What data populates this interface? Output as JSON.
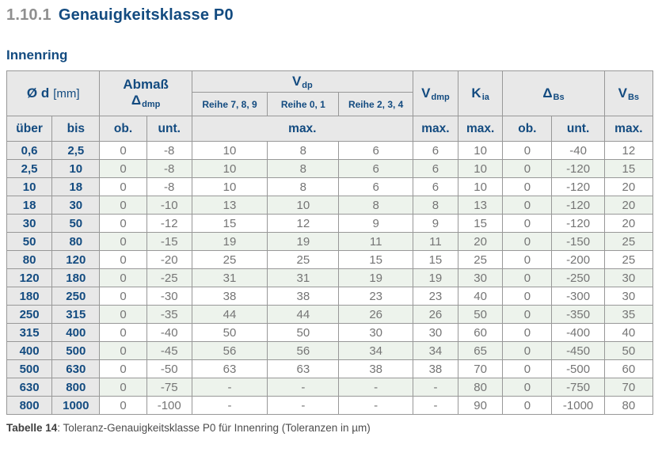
{
  "page": {
    "section_number": "1.10.1",
    "section_title": "Genauigkeitsklasse P0",
    "subtitle": "Innenring"
  },
  "table": {
    "header": {
      "diameter": {
        "main": "Ø d",
        "unit": "[mm]"
      },
      "abmass": {
        "line1": "Abmaß",
        "symbol": "Δ",
        "sub": "dmp"
      },
      "vdp": {
        "main": "V",
        "sub": "dp"
      },
      "reihe_columns": [
        "Reihe 7, 8, 9",
        "Reihe 0, 1",
        "Reihe 2, 3, 4"
      ],
      "vdmp": {
        "main": "V",
        "sub": "dmp"
      },
      "kia": {
        "main": "K",
        "sub": "ia"
      },
      "delta_bs": {
        "main": "Δ",
        "sub": "Bs"
      },
      "vbs": {
        "main": "V",
        "sub": "Bs"
      },
      "sub_row": {
        "ueber": "über",
        "bis": "bis",
        "ob1": "ob.",
        "unt1": "unt.",
        "max_vdp": "max.",
        "max_vdmp": "max.",
        "max_kia": "max.",
        "ob2": "ob.",
        "unt2": "unt.",
        "max_vbs": "max."
      }
    },
    "rows": [
      [
        "0,6",
        "2,5",
        "0",
        "-8",
        "10",
        "8",
        "6",
        "6",
        "10",
        "0",
        "-40",
        "12"
      ],
      [
        "2,5",
        "10",
        "0",
        "-8",
        "10",
        "8",
        "6",
        "6",
        "10",
        "0",
        "-120",
        "15"
      ],
      [
        "10",
        "18",
        "0",
        "-8",
        "10",
        "8",
        "6",
        "6",
        "10",
        "0",
        "-120",
        "20"
      ],
      [
        "18",
        "30",
        "0",
        "-10",
        "13",
        "10",
        "8",
        "8",
        "13",
        "0",
        "-120",
        "20"
      ],
      [
        "30",
        "50",
        "0",
        "-12",
        "15",
        "12",
        "9",
        "9",
        "15",
        "0",
        "-120",
        "20"
      ],
      [
        "50",
        "80",
        "0",
        "-15",
        "19",
        "19",
        "11",
        "11",
        "20",
        "0",
        "-150",
        "25"
      ],
      [
        "80",
        "120",
        "0",
        "-20",
        "25",
        "25",
        "15",
        "15",
        "25",
        "0",
        "-200",
        "25"
      ],
      [
        "120",
        "180",
        "0",
        "-25",
        "31",
        "31",
        "19",
        "19",
        "30",
        "0",
        "-250",
        "30"
      ],
      [
        "180",
        "250",
        "0",
        "-30",
        "38",
        "38",
        "23",
        "23",
        "40",
        "0",
        "-300",
        "30"
      ],
      [
        "250",
        "315",
        "0",
        "-35",
        "44",
        "44",
        "26",
        "26",
        "50",
        "0",
        "-350",
        "35"
      ],
      [
        "315",
        "400",
        "0",
        "-40",
        "50",
        "50",
        "30",
        "30",
        "60",
        "0",
        "-400",
        "40"
      ],
      [
        "400",
        "500",
        "0",
        "-45",
        "56",
        "56",
        "34",
        "34",
        "65",
        "0",
        "-450",
        "50"
      ],
      [
        "500",
        "630",
        "0",
        "-50",
        "63",
        "63",
        "38",
        "38",
        "70",
        "0",
        "-500",
        "60"
      ],
      [
        "630",
        "800",
        "0",
        "-75",
        "-",
        "-",
        "-",
        "-",
        "80",
        "0",
        "-750",
        "70"
      ],
      [
        "800",
        "1000",
        "0",
        "-100",
        "-",
        "-",
        "-",
        "-",
        "90",
        "0",
        "-1000",
        "80"
      ]
    ],
    "caption_label": "Tabelle 14",
    "caption_rest": ": Toleranz-Genauigkeitsklasse P0 für Innenring (Toleranzen in µm)"
  },
  "colors": {
    "accent_blue": "#134b80",
    "header_bg": "#e8e8e8",
    "alt_row_green": "#edf3ec",
    "border_grey": "#989898",
    "data_text_grey": "#757575"
  }
}
